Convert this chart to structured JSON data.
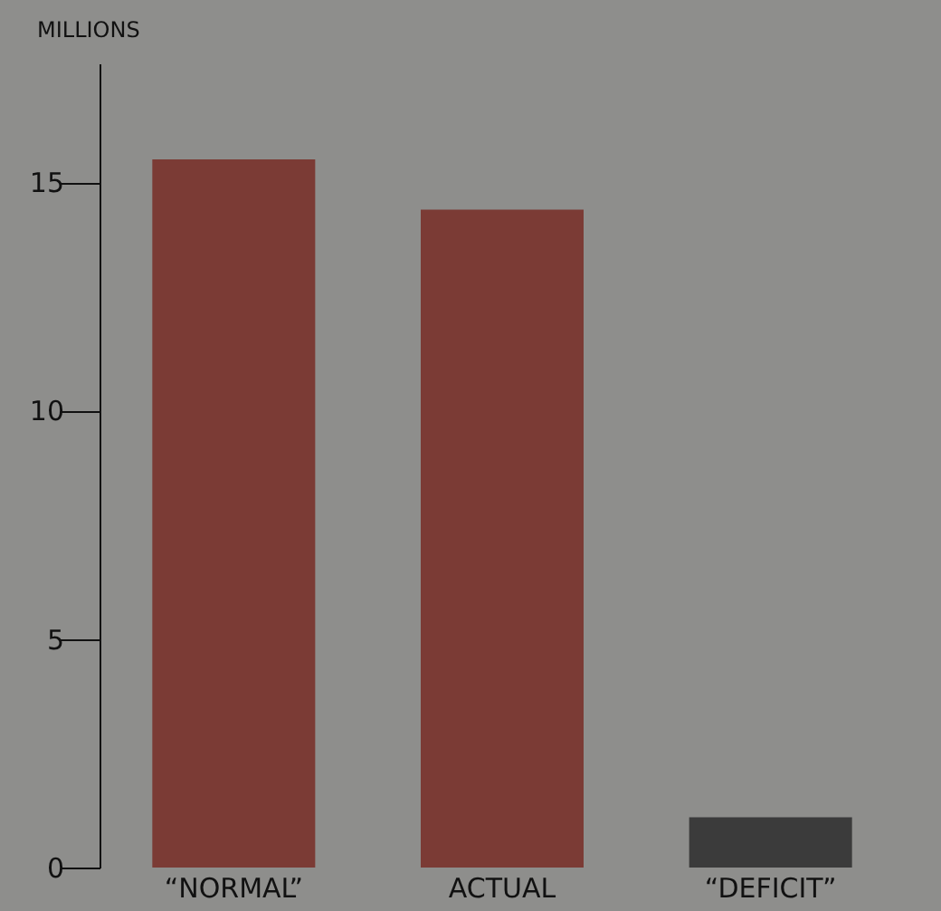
{
  "chart_data": {
    "type": "bar",
    "ylabel": "MILLIONS",
    "categories": [
      "“NORMAL”",
      "ACTUAL",
      "“DEFICIT”"
    ],
    "values": [
      15.5,
      14.4,
      1.1
    ],
    "colors": [
      "#7b3b35",
      "#7b3b35",
      "#3b3b3b"
    ],
    "ylim": [
      0,
      17.6
    ],
    "yticks": [
      0,
      5,
      10,
      15
    ],
    "grid": false,
    "legend": false
  }
}
